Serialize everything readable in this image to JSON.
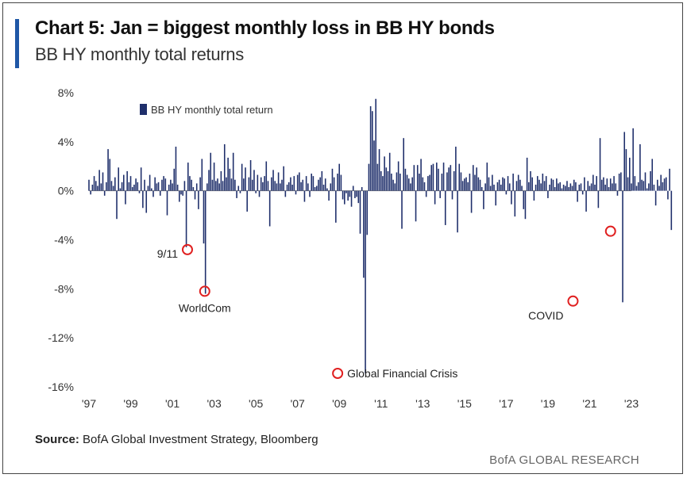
{
  "header": {
    "title": "Chart 5: Jan = biggest monthly loss in BB HY bonds",
    "subtitle": "BB HY monthly total returns",
    "accent_color": "#1f57a6"
  },
  "chart_data": {
    "type": "bar",
    "title": "Chart 5: Jan = biggest monthly loss in BB HY bonds",
    "subtitle": "BB HY monthly total returns",
    "series": [
      {
        "name": "BB HY monthly total return",
        "color": "#1f2f6b",
        "x_start": 1997.0,
        "x_step": 0.08333,
        "values": [
          0.9,
          -0.3,
          0.5,
          1.2,
          0.8,
          0.4,
          1.7,
          0.6,
          1.5,
          -0.4,
          0.7,
          3.4,
          2.6,
          0.8,
          0.4,
          1.1,
          -2.3,
          1.9,
          0.2,
          0.7,
          1.3,
          -1.1,
          1.6,
          0.7,
          1.2,
          0.3,
          0.5,
          1.0,
          0.7,
          -0.2,
          1.9,
          -1.4,
          0.9,
          -1.8,
          0.4,
          1.3,
          0.2,
          -0.5,
          1.1,
          0.6,
          0.7,
          -0.4,
          0.9,
          1.2,
          1.0,
          -2.0,
          0.5,
          0.9,
          0.6,
          1.8,
          3.6,
          0.5,
          -0.9,
          -0.3,
          -0.4,
          0.8,
          -4.6,
          2.3,
          1.2,
          0.9,
          0.3,
          -0.7,
          0.6,
          -1.5,
          1.1,
          2.6,
          -4.3,
          -8.4,
          0.6,
          1.7,
          3.1,
          0.9,
          2.3,
          0.8,
          1.0,
          0.6,
          1.6,
          0.8,
          3.8,
          1.1,
          2.7,
          1.8,
          1.0,
          3.1,
          0.9,
          -0.6,
          0.4,
          -0.2,
          2.2,
          1.0,
          1.9,
          -1.7,
          1.1,
          2.5,
          0.9,
          1.7,
          -0.2,
          1.3,
          -0.5,
          1.1,
          0.7,
          1.2,
          2.4,
          0.8,
          -2.9,
          1.1,
          1.7,
          0.8,
          0.6,
          1.5,
          0.6,
          0.9,
          2.0,
          -0.5,
          0.5,
          0.7,
          1.1,
          0.5,
          1.2,
          -0.3,
          1.3,
          1.5,
          0.7,
          0.9,
          -0.9,
          1.2,
          0.6,
          -0.5,
          1.4,
          1.2,
          0.3,
          0.4,
          0.9,
          1.1,
          1.6,
          0.5,
          1.0,
          0.2,
          -0.8,
          0.6,
          1.8,
          1.1,
          -2.6,
          1.4,
          2.2,
          1.3,
          -0.7,
          -1.1,
          -0.2,
          -0.8,
          -0.5,
          -1.3,
          0.4,
          -0.6,
          -0.5,
          -1.0,
          -3.5,
          0.3,
          -7.1,
          -14.9,
          -3.6,
          2.2,
          6.9,
          6.5,
          4.1,
          7.5,
          2.2,
          3.4,
          1.6,
          1.2,
          2.8,
          1.9,
          1.6,
          3.1,
          1.4,
          0.9,
          0.6,
          1.5,
          2.4,
          1.4,
          -3.1,
          4.3,
          1.8,
          1.3,
          1.0,
          0.6,
          1.1,
          2.1,
          -2.5,
          2.1,
          1.4,
          2.6,
          1.1,
          0.7,
          -0.5,
          1.2,
          1.3,
          2.1,
          2.2,
          -1.1,
          2.3,
          1.8,
          -0.6,
          1.4,
          2.3,
          -2.8,
          1.5,
          1.9,
          2.1,
          -0.7,
          1.6,
          3.6,
          -3.4,
          2.2,
          1.5,
          0.8,
          1.0,
          1.1,
          0.7,
          1.4,
          -1.8,
          2.1,
          1.3,
          1.9,
          1.1,
          0.9,
          0.3,
          -1.5,
          0.6,
          2.3,
          1.1,
          0.4,
          1.3,
          0.5,
          -1.2,
          0.7,
          0.9,
          0.5,
          1.1,
          1.0,
          -0.3,
          1.2,
          0.6,
          -1.1,
          1.4,
          -2.1,
          0.8,
          1.3,
          0.9,
          0.4,
          -1.5,
          -2.3,
          2.7,
          0.7,
          1.6,
          1.1,
          -0.8,
          0.5,
          1.2,
          0.9,
          0.6,
          1.4,
          0.8,
          1.2,
          -0.6,
          0.5,
          1.0,
          0.9,
          0.3,
          1.0,
          0.6,
          0.7,
          0.2,
          0.5,
          0.4,
          0.8,
          0.3,
          0.6,
          0.4,
          0.9,
          0.7,
          -0.9,
          0.5,
          0.6,
          -0.3,
          1.1,
          -1.7,
          0.8,
          0.4,
          0.6,
          1.3,
          0.5,
          1.2,
          -1.4,
          4.3,
          0.9,
          1.1,
          0.5,
          1.0,
          0.3,
          1.0,
          0.6,
          1.2,
          0.6,
          -0.4,
          1.4,
          1.5,
          -9.1,
          4.8,
          3.4,
          1.1,
          2.7,
          0.6,
          5.1,
          1.2,
          0.4,
          0.7,
          3.8,
          0.9,
          0.8,
          1.5,
          0.2,
          0.6,
          1.6,
          2.6,
          0.5,
          -1.2,
          0.9,
          0.4,
          1.3,
          0.7,
          1.0,
          1.1,
          -0.7,
          1.8,
          -3.2
        ]
      }
    ],
    "xlim": [
      1997,
      2023
    ],
    "ylim": [
      -16,
      8
    ],
    "yticks": [
      8,
      4,
      0,
      -4,
      -8,
      -12,
      -16
    ],
    "ytick_labels": [
      "8%",
      "4%",
      "0%",
      "-4%",
      "-8%",
      "-12%",
      "-16%"
    ],
    "xticks": [
      1997,
      1999,
      2001,
      2003,
      2005,
      2007,
      2009,
      2011,
      2013,
      2015,
      2017,
      2019,
      2021,
      2023
    ],
    "xtick_labels": [
      "'97",
      "'99",
      "'01",
      "'03",
      "'05",
      "'07",
      "'09",
      "'11",
      "'13",
      "'15",
      "'17",
      "'19",
      "'21",
      "'23"
    ],
    "xlabel": "",
    "ylabel": "",
    "grid": false,
    "legend": {
      "position": "top-left",
      "entries": [
        "BB HY monthly total return"
      ]
    },
    "annotations": [
      {
        "label": "9/11",
        "x": 2001.72,
        "y": -4.8,
        "label_side": "left"
      },
      {
        "label": "WorldCom",
        "x": 2002.55,
        "y": -8.2,
        "label_side": "below"
      },
      {
        "label": "Global Financial Crisis",
        "x": 2008.92,
        "y": -14.9,
        "label_side": "right"
      },
      {
        "label": "COVID",
        "x": 2020.2,
        "y": -9.0,
        "label_side": "left"
      },
      {
        "label": "",
        "x": 2022.0,
        "y": -3.3,
        "label_side": "none"
      }
    ],
    "annotation_color": "#e02020"
  },
  "footer": {
    "source_label": "Source:",
    "source_text": "BofA Global Investment Strategy, Bloomberg",
    "brand": "BofA GLOBAL RESEARCH"
  }
}
